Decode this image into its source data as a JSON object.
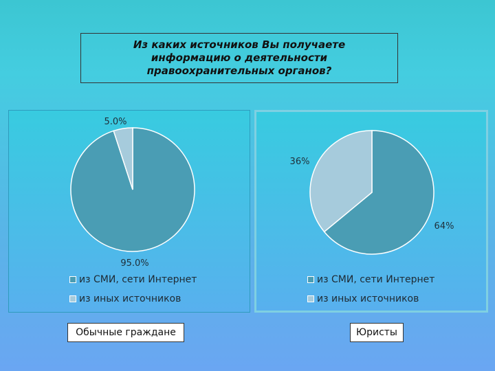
{
  "title": "Из каких источников Вы получаете информацию о деятельности правоохранительных органов?",
  "colors": {
    "series_media": "#4a9db4",
    "series_other": "#a6cbdc"
  },
  "chart_data": [
    {
      "type": "pie",
      "group_label": "Обычные граждане",
      "slices": [
        {
          "name": "из СМИ, сети Интернет",
          "value": 95.0,
          "label": "95.0%"
        },
        {
          "name": "из иных источников",
          "value": 5.0,
          "label": "5.0%"
        }
      ],
      "legend": [
        "из СМИ, сети Интернет",
        "из иных источников"
      ]
    },
    {
      "type": "pie",
      "group_label": "Юристы",
      "slices": [
        {
          "name": "из СМИ, сети Интернет",
          "value": 64,
          "label": "64%"
        },
        {
          "name": "из иных источников",
          "value": 36,
          "label": "36%"
        }
      ],
      "legend": [
        "из СМИ, сети Интернет",
        "из иных источников"
      ]
    }
  ]
}
